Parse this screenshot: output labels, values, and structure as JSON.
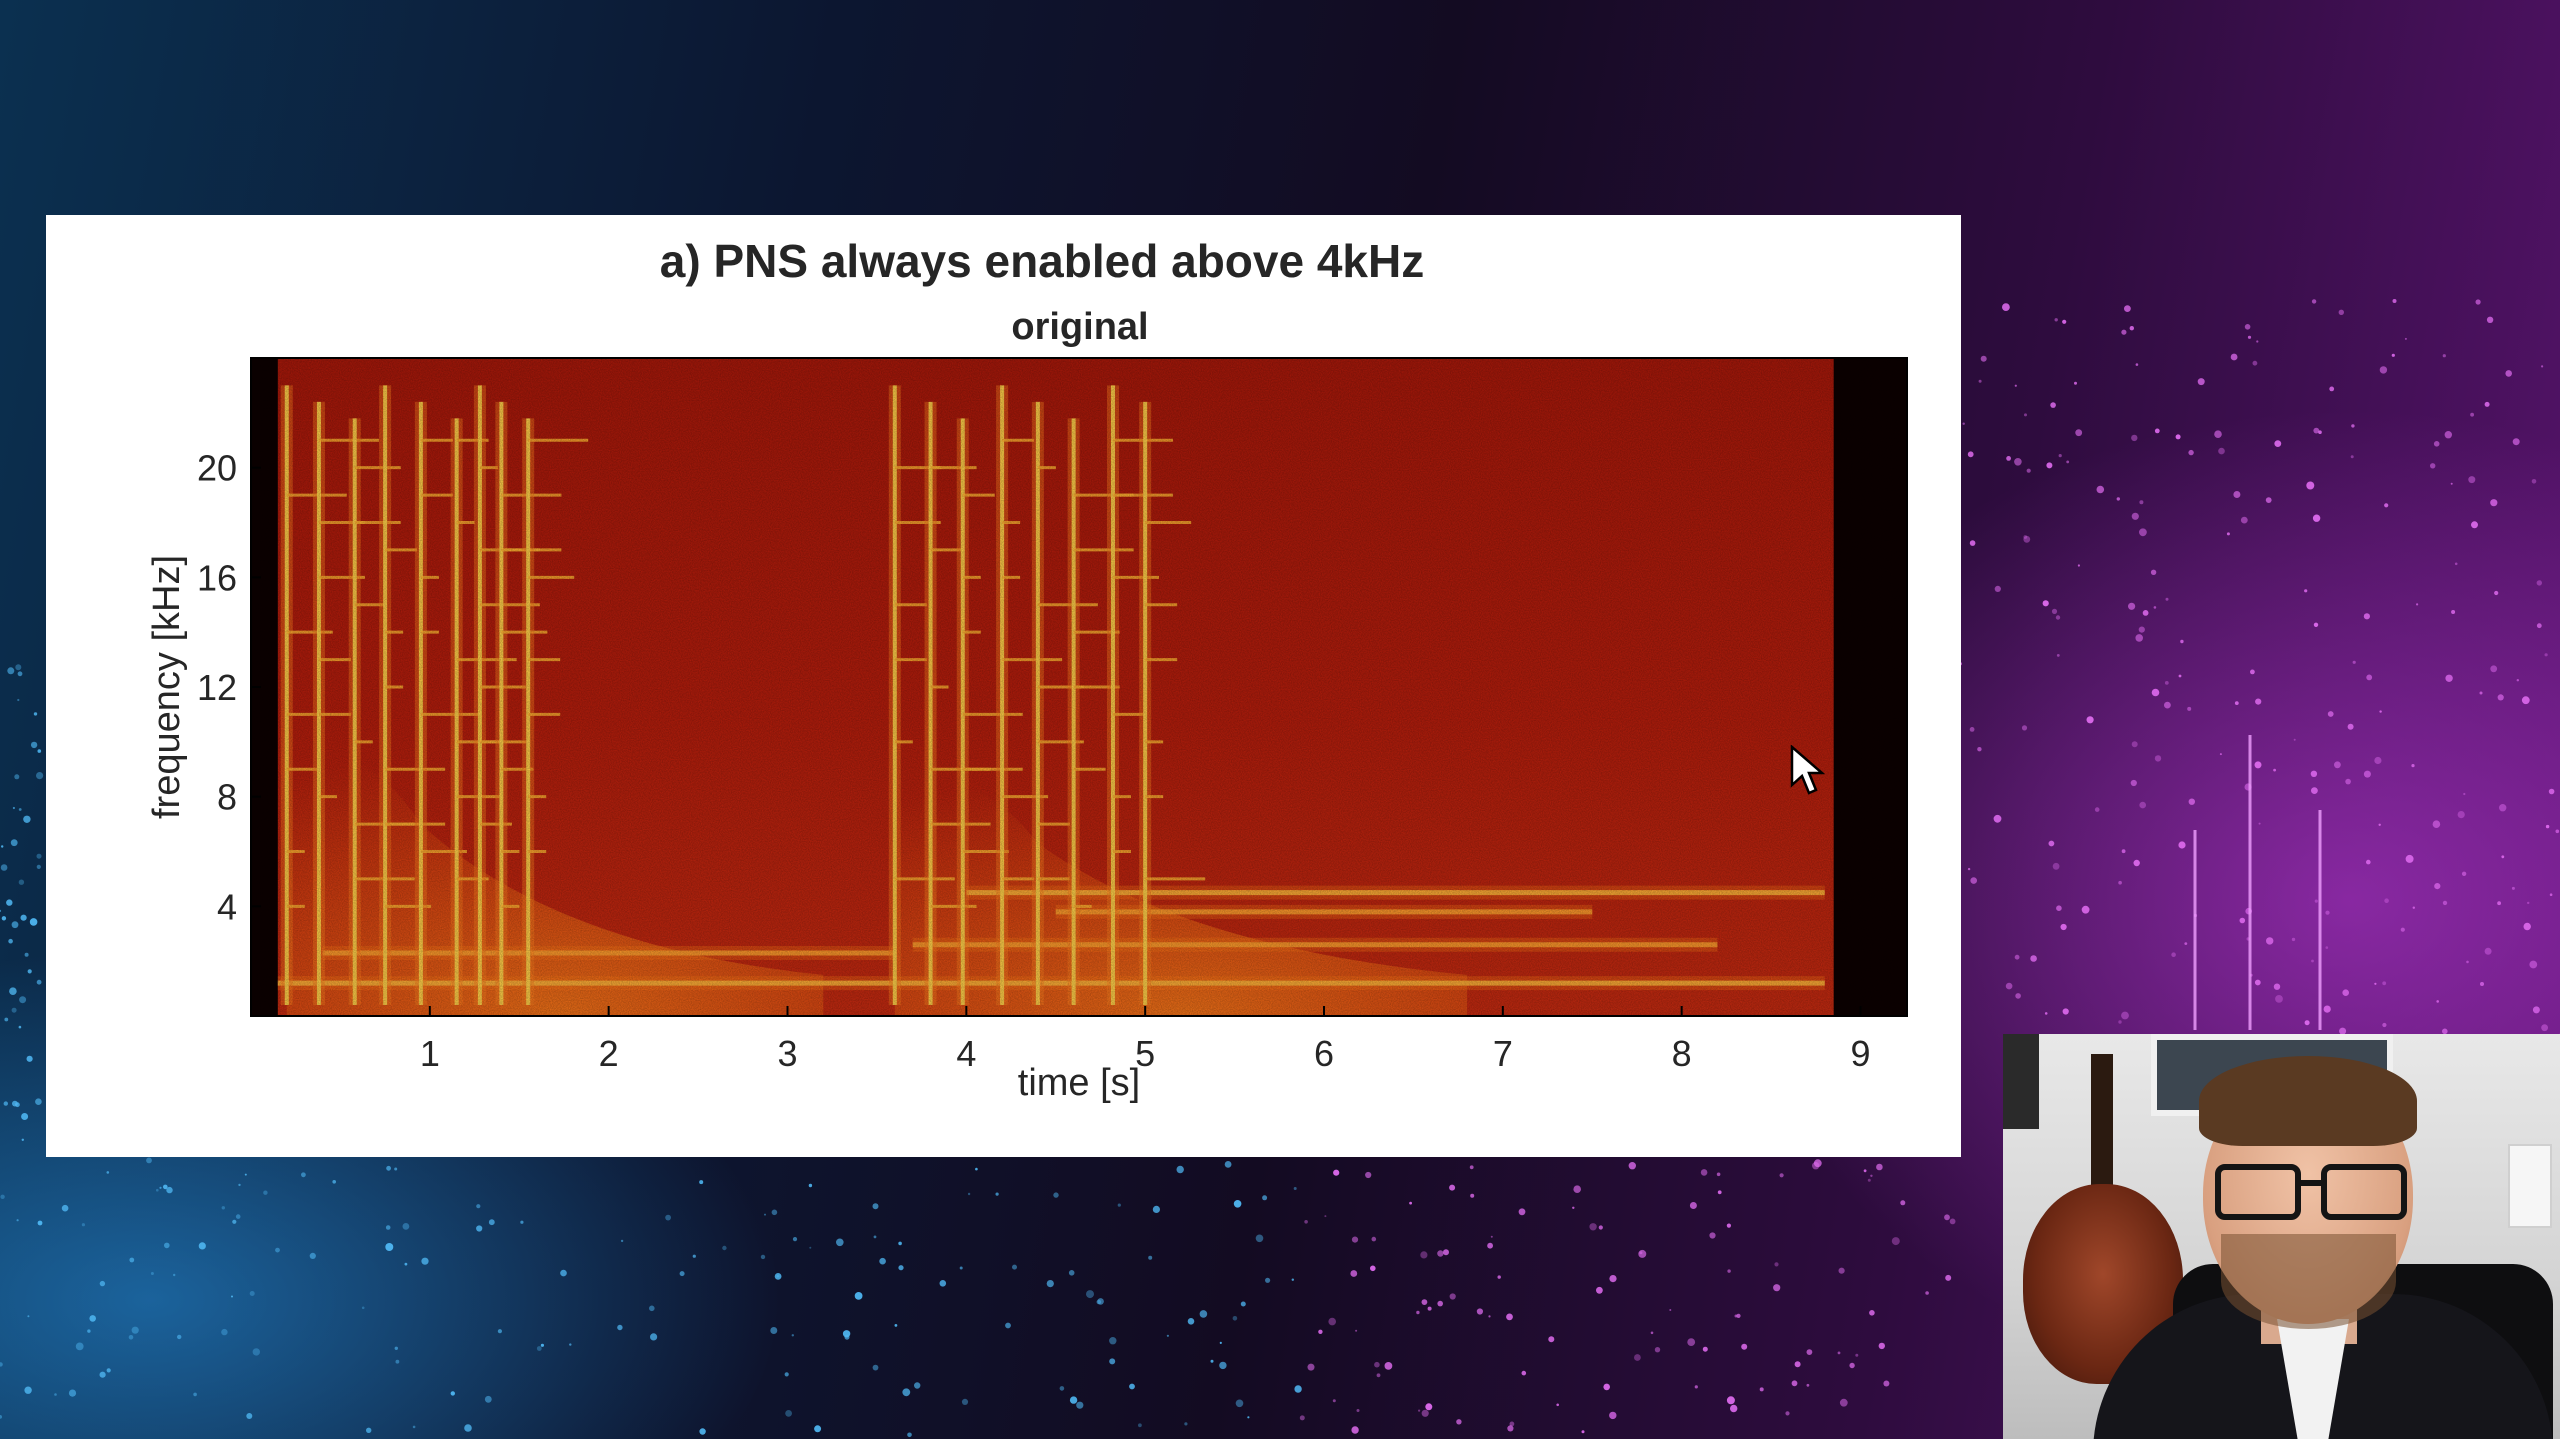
{
  "chart_data": {
    "type": "heatmap",
    "title": "a) PNS always enabled above 4kHz",
    "subtitle": "original",
    "xlabel": "time [s]",
    "ylabel": "frequency [kHz]",
    "xlim": [
      0,
      9.26
    ],
    "ylim": [
      0,
      24
    ],
    "xticks": [
      1,
      2,
      3,
      4,
      5,
      6,
      7,
      8,
      9
    ],
    "xtick_labels": [
      "1",
      "2",
      "3",
      "4",
      "5",
      "6",
      "7",
      "8",
      "9"
    ],
    "yticks": [
      4,
      8,
      12,
      16,
      20
    ],
    "ytick_labels": [
      "4",
      "8",
      "12",
      "16",
      "20"
    ],
    "colormap": "hot",
    "grid": false,
    "signal_start_s": 0.15,
    "signal_end_s": 8.85,
    "onsets_s": [
      0.2,
      0.38,
      0.58,
      0.75,
      0.95,
      1.15,
      1.28,
      1.4,
      1.55,
      3.6,
      3.8,
      3.98,
      4.2,
      4.4,
      4.6,
      4.82,
      5.0
    ],
    "sustained_partials": [
      {
        "freq_khz": 1.2,
        "start_s": 0.15,
        "end_s": 3.6
      },
      {
        "freq_khz": 2.3,
        "start_s": 0.4,
        "end_s": 3.6
      },
      {
        "freq_khz": 1.2,
        "start_s": 3.6,
        "end_s": 8.8
      },
      {
        "freq_khz": 2.6,
        "start_s": 3.7,
        "end_s": 8.2
      },
      {
        "freq_khz": 4.5,
        "start_s": 4.0,
        "end_s": 8.8
      },
      {
        "freq_khz": 3.8,
        "start_s": 4.5,
        "end_s": 7.5
      }
    ]
  },
  "colors": {
    "background_floor": "#b81e0c",
    "peak": "#ffd24a",
    "edge": "#1a0000"
  }
}
